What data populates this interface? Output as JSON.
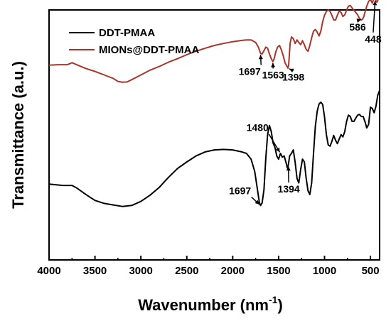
{
  "chart_data": {
    "type": "line",
    "xlabel": "Wavenumber (nm",
    "xlabel_sup": "-1",
    "xlabel_tail": ")",
    "ylabel": "Transmittance (a.u.)",
    "xlim": [
      4000,
      400
    ],
    "ylim": [
      0,
      100
    ],
    "x_ticks": [
      4000,
      3500,
      3000,
      2500,
      2000,
      1500,
      1000,
      500
    ],
    "x_tick_labels": [
      "4000",
      "3500",
      "3000",
      "2500",
      "2000",
      "1500",
      "1000",
      "500"
    ],
    "y_ticks_shown": false,
    "legend": {
      "placement": "top-left"
    },
    "series": [
      {
        "name": "DDT-PMAA",
        "color": "#000000",
        "points": [
          [
            4000,
            30.3
          ],
          [
            3850,
            29.8
          ],
          [
            3750,
            29.8
          ],
          [
            3700,
            28.8
          ],
          [
            3600,
            26.2
          ],
          [
            3500,
            23.8
          ],
          [
            3400,
            22.6
          ],
          [
            3300,
            22.0
          ],
          [
            3200,
            21.4
          ],
          [
            3100,
            21.8
          ],
          [
            3000,
            23.4
          ],
          [
            2900,
            25.9
          ],
          [
            2800,
            29.0
          ],
          [
            2700,
            33.0
          ],
          [
            2600,
            36.6
          ],
          [
            2500,
            39.2
          ],
          [
            2400,
            41.6
          ],
          [
            2300,
            43.2
          ],
          [
            2200,
            44.0
          ],
          [
            2100,
            44.2
          ],
          [
            2000,
            44.0
          ],
          [
            1900,
            43.2
          ],
          [
            1850,
            42.6
          ],
          [
            1800,
            40.3
          ],
          [
            1760,
            35.4
          ],
          [
            1730,
            28.0
          ],
          [
            1710,
            23.1
          ],
          [
            1697,
            21.8
          ],
          [
            1680,
            22.8
          ],
          [
            1660,
            28.0
          ],
          [
            1640,
            40.3
          ],
          [
            1620,
            50.1
          ],
          [
            1600,
            53.8
          ],
          [
            1580,
            51.3
          ],
          [
            1560,
            46.7
          ],
          [
            1540,
            45.0
          ],
          [
            1520,
            41.6
          ],
          [
            1500,
            40.3
          ],
          [
            1480,
            42.6
          ],
          [
            1460,
            41.1
          ],
          [
            1440,
            41.6
          ],
          [
            1420,
            39.0
          ],
          [
            1405,
            36.8
          ],
          [
            1394,
            38.0
          ],
          [
            1380,
            41.6
          ],
          [
            1360,
            42.6
          ],
          [
            1340,
            44.0
          ],
          [
            1320,
            39.0
          ],
          [
            1300,
            32.6
          ],
          [
            1280,
            30.8
          ],
          [
            1260,
            36.1
          ],
          [
            1240,
            40.3
          ],
          [
            1220,
            39.2
          ],
          [
            1200,
            32.6
          ],
          [
            1180,
            27.6
          ],
          [
            1160,
            26.2
          ],
          [
            1140,
            30.8
          ],
          [
            1120,
            42.6
          ],
          [
            1100,
            53.5
          ],
          [
            1080,
            59.5
          ],
          [
            1060,
            62.4
          ],
          [
            1040,
            63.1
          ],
          [
            1020,
            62.2
          ],
          [
            1000,
            57.2
          ],
          [
            980,
            50.1
          ],
          [
            960,
            46.0
          ],
          [
            940,
            45.5
          ],
          [
            920,
            47.4
          ],
          [
            900,
            49.8
          ],
          [
            880,
            47.9
          ],
          [
            860,
            46.5
          ],
          [
            840,
            48.4
          ],
          [
            820,
            50.1
          ],
          [
            800,
            49.2
          ],
          [
            780,
            51.3
          ],
          [
            760,
            55.4
          ],
          [
            740,
            57.9
          ],
          [
            720,
            57.4
          ],
          [
            700,
            55.4
          ],
          [
            680,
            55.4
          ],
          [
            660,
            56.7
          ],
          [
            640,
            57.9
          ],
          [
            620,
            58.2
          ],
          [
            600,
            57.4
          ],
          [
            580,
            57.4
          ],
          [
            560,
            55.4
          ],
          [
            540,
            52.8
          ],
          [
            520,
            54.2
          ],
          [
            500,
            61.1
          ],
          [
            480,
            60.6
          ],
          [
            460,
            58.9
          ],
          [
            440,
            61.4
          ],
          [
            420,
            65.9
          ],
          [
            400,
            67.8
          ]
        ]
      },
      {
        "name": "MIONs@DDT-PMAA",
        "color": "#a8352b",
        "points": [
          [
            4000,
            77.9
          ],
          [
            3900,
            78.1
          ],
          [
            3800,
            78.1
          ],
          [
            3750,
            78.9
          ],
          [
            3700,
            78.1
          ],
          [
            3600,
            76.6
          ],
          [
            3500,
            75.4
          ],
          [
            3400,
            74.0
          ],
          [
            3350,
            73.3
          ],
          [
            3300,
            72.6
          ],
          [
            3250,
            71.4
          ],
          [
            3200,
            71.1
          ],
          [
            3150,
            71.2
          ],
          [
            3100,
            72.1
          ],
          [
            3000,
            74.0
          ],
          [
            2900,
            75.9
          ],
          [
            2800,
            77.4
          ],
          [
            2700,
            79.1
          ],
          [
            2600,
            80.5
          ],
          [
            2500,
            82.1
          ],
          [
            2400,
            83.5
          ],
          [
            2300,
            84.7
          ],
          [
            2200,
            85.8
          ],
          [
            2100,
            86.6
          ],
          [
            2000,
            87.3
          ],
          [
            1900,
            87.8
          ],
          [
            1850,
            88.0
          ],
          [
            1800,
            88.0
          ],
          [
            1750,
            87.0
          ],
          [
            1720,
            85.1
          ],
          [
            1697,
            82.6
          ],
          [
            1680,
            82.4
          ],
          [
            1660,
            83.7
          ],
          [
            1640,
            85.1
          ],
          [
            1620,
            84.7
          ],
          [
            1600,
            82.4
          ],
          [
            1580,
            80.5
          ],
          [
            1563,
            79.4
          ],
          [
            1550,
            80.3
          ],
          [
            1530,
            83.3
          ],
          [
            1510,
            85.2
          ],
          [
            1490,
            85.8
          ],
          [
            1470,
            84.0
          ],
          [
            1450,
            81.7
          ],
          [
            1430,
            78.8
          ],
          [
            1410,
            77.5
          ],
          [
            1398,
            76.7
          ],
          [
            1390,
            78.2
          ],
          [
            1375,
            86.6
          ],
          [
            1360,
            89.2
          ],
          [
            1340,
            88.5
          ],
          [
            1320,
            86.6
          ],
          [
            1300,
            88.0
          ],
          [
            1280,
            87.0
          ],
          [
            1260,
            86.1
          ],
          [
            1240,
            87.7
          ],
          [
            1220,
            86.1
          ],
          [
            1200,
            84.2
          ],
          [
            1180,
            83.5
          ],
          [
            1160,
            85.8
          ],
          [
            1140,
            88.9
          ],
          [
            1120,
            91.5
          ],
          [
            1100,
            92.2
          ],
          [
            1080,
            91.1
          ],
          [
            1060,
            89.6
          ],
          [
            1040,
            91.5
          ],
          [
            1020,
            95.3
          ],
          [
            1000,
            97.9
          ],
          [
            980,
            99.4
          ],
          [
            960,
            100.0
          ],
          [
            940,
            99.4
          ],
          [
            920,
            97.9
          ],
          [
            900,
            96.0
          ],
          [
            880,
            96.0
          ],
          [
            860,
            97.9
          ],
          [
            840,
            99.6
          ],
          [
            820,
            99.0
          ],
          [
            800,
            97.4
          ],
          [
            780,
            98.0
          ],
          [
            760,
            99.9
          ],
          [
            740,
            101.5
          ],
          [
            720,
            101.8
          ],
          [
            700,
            100.8
          ],
          [
            680,
            99.9
          ],
          [
            660,
            99.0
          ],
          [
            640,
            98.1
          ],
          [
            620,
            96.6
          ],
          [
            600,
            96.0
          ],
          [
            586,
            96.3
          ],
          [
            570,
            97.5
          ],
          [
            560,
            99.0
          ],
          [
            540,
            101.5
          ],
          [
            520,
            103.4
          ],
          [
            500,
            104.2
          ],
          [
            480,
            102.7
          ],
          [
            460,
            105.0
          ],
          [
            448,
            104.2
          ],
          [
            430,
            103.1
          ],
          [
            410,
            104.6
          ],
          [
            400,
            104.2
          ]
        ]
      }
    ],
    "annotations": [
      {
        "label": "1697",
        "series": 1,
        "at": [
          1697,
          82.6
        ],
        "text_x": 1815,
        "text_y": 74.0
      },
      {
        "label": "1563",
        "series": 1,
        "at": [
          1563,
          79.4
        ],
        "text_x": 1560,
        "text_y": 72.6
      },
      {
        "label": "1398",
        "series": 1,
        "at": [
          1398,
          76.7
        ],
        "text_x": 1340,
        "text_y": 71.7
      },
      {
        "label": "586",
        "series": 1,
        "at": [
          586,
          96.3
        ],
        "text_x": 640,
        "text_y": 91.8
      },
      {
        "label": "448",
        "series": 1,
        "at": [
          448,
          104.2
        ],
        "text_x": 470,
        "text_y": 87.0
      },
      {
        "label": "1480",
        "series": 0,
        "at": [
          1480,
          42.6
        ],
        "text_x": 1730,
        "text_y": 51.5
      },
      {
        "label": "1394",
        "series": 0,
        "at": [
          1394,
          38.0
        ],
        "text_x": 1390,
        "text_y": 27.0
      },
      {
        "label": "1697",
        "series": 0,
        "at": [
          1697,
          21.8
        ],
        "text_x": 1920,
        "text_y": 26.3
      }
    ]
  }
}
